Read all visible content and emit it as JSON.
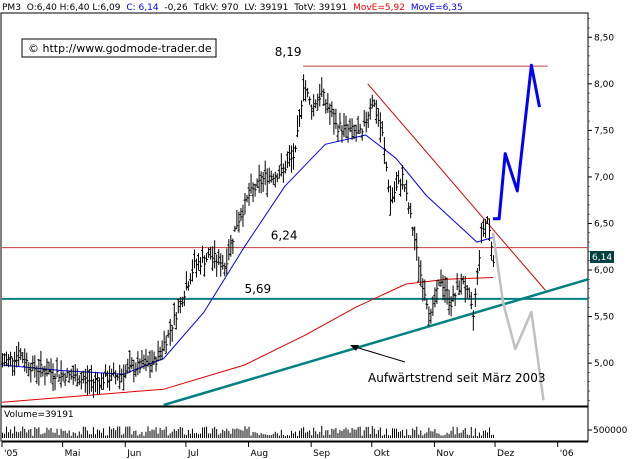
{
  "header": {
    "symbol": "PM3",
    "ohlc": "O:6,40 H:6,40 L:6,09",
    "close": "C: 6,14",
    "change": "-0,26",
    "tkv": "TdkV: 970",
    "lv": "LV: 39191",
    "totv": "TotV: 39191",
    "move_red": "MovE=5,92",
    "move_blue": "MovE=6,35"
  },
  "copyright": "© http://www.godmode-trader.de",
  "price_tag": "6,14",
  "colors": {
    "price": "#000000",
    "ma_fast": "#0000ff",
    "ma_slow": "#e00000",
    "resistance": "#c04040",
    "trendline": "#008080",
    "support": "#008080",
    "projection_bull": "#0000ff",
    "projection_bear": "#c0c0c0",
    "move_red_text": "#ff0000",
    "move_blue_text": "#0000ff",
    "price_tag_bg": "#004040"
  },
  "chart_data": {
    "type": "line",
    "subtype": "ohlc-bars",
    "ylim": [
      4.55,
      8.75
    ],
    "y_ticks": [
      "8,50",
      "8,00",
      "7,50",
      "7,00",
      "6,50",
      "6,00",
      "5,50",
      "5,00"
    ],
    "y_tick_values": [
      8.5,
      8.0,
      7.5,
      7.0,
      6.5,
      6.0,
      5.5,
      5.0
    ],
    "x_labels": [
      "'05",
      "Mai",
      "Jun",
      "Jul",
      "Aug",
      "Sep",
      "Okt",
      "Nov",
      "Dez",
      "'06"
    ],
    "x_label_days": [
      0,
      30,
      61,
      91,
      122,
      153,
      183,
      214,
      244,
      275
    ],
    "x_range_days": [
      0,
      290
    ],
    "grid": false,
    "annotations": [
      {
        "text": "8,19",
        "value": 8.19
      },
      {
        "text": "6,24",
        "value": 6.24
      },
      {
        "text": "5,69",
        "value": 5.69
      },
      {
        "text": "Aufwärtstrend seit März 2003"
      }
    ],
    "levels": {
      "resistance": 6.24,
      "support": 5.69,
      "high": 8.19
    },
    "trendline": [
      {
        "day": 80,
        "value": 4.55
      },
      {
        "day": 290,
        "value": 5.9
      }
    ],
    "falling_line": [
      {
        "day": 181,
        "value": 8.0
      },
      {
        "day": 269,
        "value": 5.78
      }
    ],
    "price_anchors": [
      {
        "day": 0,
        "value": 5.0
      },
      {
        "day": 8,
        "value": 5.1
      },
      {
        "day": 15,
        "value": 4.95
      },
      {
        "day": 25,
        "value": 4.9
      },
      {
        "day": 35,
        "value": 4.85
      },
      {
        "day": 45,
        "value": 4.8
      },
      {
        "day": 55,
        "value": 4.85
      },
      {
        "day": 65,
        "value": 4.95
      },
      {
        "day": 75,
        "value": 5.0
      },
      {
        "day": 82,
        "value": 5.3
      },
      {
        "day": 88,
        "value": 5.65
      },
      {
        "day": 95,
        "value": 6.05
      },
      {
        "day": 103,
        "value": 6.15
      },
      {
        "day": 110,
        "value": 6.05
      },
      {
        "day": 116,
        "value": 6.5
      },
      {
        "day": 122,
        "value": 6.8
      },
      {
        "day": 130,
        "value": 7.0
      },
      {
        "day": 138,
        "value": 7.05
      },
      {
        "day": 145,
        "value": 7.25
      },
      {
        "day": 149,
        "value": 8.0
      },
      {
        "day": 153,
        "value": 7.75
      },
      {
        "day": 158,
        "value": 7.9
      },
      {
        "day": 165,
        "value": 7.55
      },
      {
        "day": 172,
        "value": 7.5
      },
      {
        "day": 178,
        "value": 7.45
      },
      {
        "day": 183,
        "value": 7.85
      },
      {
        "day": 188,
        "value": 7.45
      },
      {
        "day": 192,
        "value": 6.75
      },
      {
        "day": 198,
        "value": 7.0
      },
      {
        "day": 203,
        "value": 6.45
      },
      {
        "day": 207,
        "value": 5.95
      },
      {
        "day": 212,
        "value": 5.5
      },
      {
        "day": 217,
        "value": 5.9
      },
      {
        "day": 222,
        "value": 5.65
      },
      {
        "day": 228,
        "value": 5.9
      },
      {
        "day": 233,
        "value": 5.5
      },
      {
        "day": 237,
        "value": 6.4
      },
      {
        "day": 240,
        "value": 6.55
      },
      {
        "day": 243,
        "value": 6.14
      }
    ],
    "series": [
      {
        "name": "MovE=6,35",
        "values": [
          [
            0,
            4.98
          ],
          [
            30,
            4.92
          ],
          [
            60,
            4.88
          ],
          [
            80,
            5.05
          ],
          [
            100,
            5.55
          ],
          [
            120,
            6.25
          ],
          [
            140,
            6.9
          ],
          [
            160,
            7.35
          ],
          [
            180,
            7.45
          ],
          [
            195,
            7.2
          ],
          [
            210,
            6.8
          ],
          [
            225,
            6.5
          ],
          [
            235,
            6.3
          ],
          [
            243,
            6.35
          ]
        ]
      },
      {
        "name": "MovE=5,92",
        "values": [
          [
            0,
            4.58
          ],
          [
            40,
            4.65
          ],
          [
            80,
            4.72
          ],
          [
            120,
            4.98
          ],
          [
            150,
            5.3
          ],
          [
            175,
            5.6
          ],
          [
            200,
            5.85
          ],
          [
            220,
            5.9
          ],
          [
            243,
            5.92
          ]
        ]
      }
    ],
    "projections": {
      "bull": [
        [
          243,
          6.55
        ],
        [
          246,
          6.55
        ],
        [
          249,
          7.25
        ],
        [
          255,
          6.85
        ],
        [
          262,
          8.2
        ],
        [
          266,
          7.75
        ]
      ],
      "bear": [
        [
          243,
          6.4
        ],
        [
          248,
          5.65
        ],
        [
          254,
          5.15
        ],
        [
          262,
          5.55
        ],
        [
          268,
          4.6
        ]
      ]
    },
    "volume": {
      "label": "Volume=39191",
      "axis_label": "500000"
    }
  }
}
